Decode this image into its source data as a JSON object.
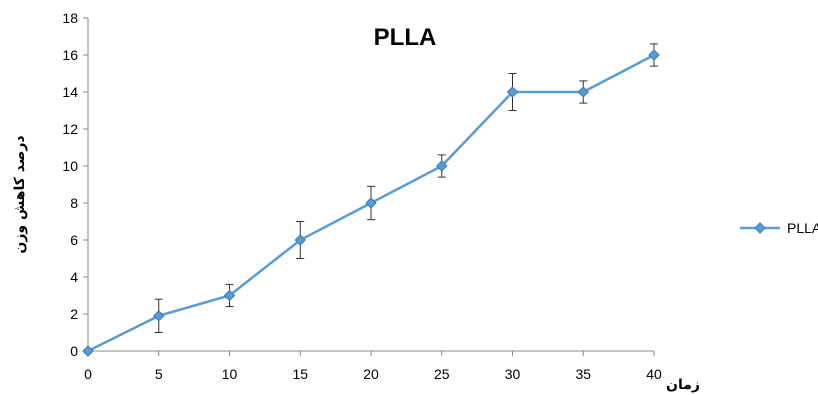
{
  "chart_data": {
    "type": "line",
    "title": "PLLA",
    "xlabel": "زمان",
    "ylabel": "درصد کاهش وزن",
    "x": [
      0,
      5,
      10,
      15,
      20,
      25,
      30,
      35,
      40
    ],
    "xlim": [
      0,
      40
    ],
    "ylim": [
      0,
      18
    ],
    "x_ticks": [
      0,
      5,
      10,
      15,
      20,
      25,
      30,
      35,
      40
    ],
    "y_ticks": [
      0,
      2,
      4,
      6,
      8,
      10,
      12,
      14,
      16,
      18
    ],
    "grid": false,
    "legend_position": "right",
    "series": [
      {
        "name": "PLLA",
        "values": [
          0,
          1.9,
          3.0,
          6.0,
          8.0,
          10.0,
          14.0,
          14.0,
          16.0
        ],
        "error": [
          0,
          0.9,
          0.6,
          1.0,
          0.9,
          0.6,
          1.0,
          0.6,
          0.6
        ],
        "color": "#5B9BD5"
      }
    ]
  }
}
